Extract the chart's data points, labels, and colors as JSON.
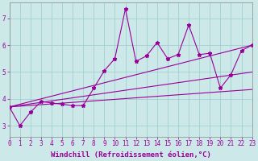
{
  "xlabel": "Windchill (Refroidissement éolien,°C)",
  "background_color": "#cce8e8",
  "line_color": "#990099",
  "xlim": [
    0,
    23
  ],
  "ylim": [
    2.6,
    7.6
  ],
  "yticks": [
    3,
    4,
    5,
    6,
    7
  ],
  "xticks": [
    0,
    1,
    2,
    3,
    4,
    5,
    6,
    7,
    8,
    9,
    10,
    11,
    12,
    13,
    14,
    15,
    16,
    17,
    18,
    19,
    20,
    21,
    22,
    23
  ],
  "series1_x": [
    0,
    1,
    2,
    3,
    4,
    5,
    6,
    7,
    8,
    9,
    10,
    11,
    12,
    13,
    14,
    15,
    16,
    17,
    18,
    19,
    20,
    21,
    22,
    23
  ],
  "series1_y": [
    3.7,
    3.0,
    3.5,
    3.9,
    3.85,
    3.8,
    3.75,
    3.75,
    4.4,
    5.05,
    5.5,
    7.35,
    5.4,
    5.6,
    6.1,
    5.5,
    5.65,
    6.75,
    5.65,
    5.7,
    4.4,
    4.9,
    5.8,
    6.0
  ],
  "trend1_x": [
    0,
    23
  ],
  "trend1_y": [
    3.7,
    6.0
  ],
  "trend2_x": [
    0,
    23
  ],
  "trend2_y": [
    3.7,
    5.0
  ],
  "trend3_x": [
    0,
    23
  ],
  "trend3_y": [
    3.7,
    4.35
  ],
  "grid_color": "#99cccc",
  "tick_fontsize": 5.5,
  "label_fontsize": 6.5
}
